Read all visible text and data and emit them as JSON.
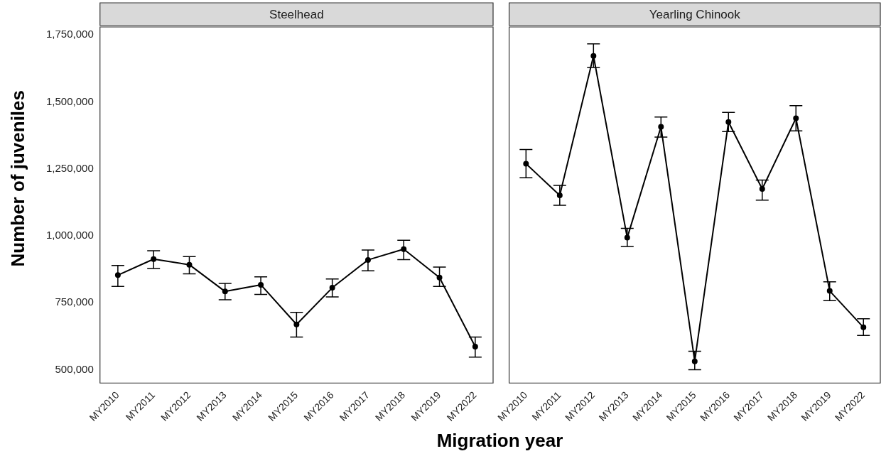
{
  "chart_data": [
    {
      "type": "line",
      "title": "Steelhead",
      "xlabel": "Migration year",
      "ylabel": "Number of juveniles",
      "categories": [
        "MY2010",
        "MY2011",
        "MY2012",
        "MY2013",
        "MY2014",
        "MY2015",
        "MY2016",
        "MY2017",
        "MY2018",
        "MY2019",
        "MY2022"
      ],
      "series": [
        {
          "color": "#000000",
          "values": [
            853000,
            913000,
            892000,
            792000,
            817000,
            669000,
            806000,
            910000,
            950000,
            844000,
            586000
          ],
          "errors": [
            [
              811000,
              889000
            ],
            [
              878000,
              944000
            ],
            [
              858000,
              922000
            ],
            [
              761000,
              822000
            ],
            [
              781000,
              847000
            ],
            [
              622000,
              714000
            ],
            [
              772000,
              839000
            ],
            [
              869000,
              947000
            ],
            [
              911000,
              983000
            ],
            [
              811000,
              883000
            ],
            [
              547000,
              622000
            ]
          ]
        }
      ],
      "ylim": [
        450000,
        1780000
      ],
      "yticks": [
        {
          "value": 500000,
          "label": "500,000"
        },
        {
          "value": 750000,
          "label": "750,000"
        },
        {
          "value": 1000000,
          "label": "1,000,000"
        },
        {
          "value": 1250000,
          "label": "1,250,000"
        },
        {
          "value": 1500000,
          "label": "1,500,000"
        },
        {
          "value": 1750000,
          "label": "1,750,000"
        }
      ],
      "grid": false,
      "legend": false,
      "marker": "circle",
      "line_style": "solid"
    },
    {
      "type": "line",
      "title": "Yearling Chinook",
      "categories": [
        "MY2010",
        "MY2011",
        "MY2012",
        "MY2013",
        "MY2014",
        "MY2015",
        "MY2016",
        "MY2017",
        "MY2018",
        "MY2019",
        "MY2022"
      ],
      "series": [
        {
          "color": "#000000",
          "values": [
            1269000,
            1151000,
            1672000,
            993000,
            1407000,
            531000,
            1425000,
            1175000,
            1439000,
            794000,
            658000
          ],
          "errors": [
            [
              1217000,
              1322000
            ],
            [
              1114000,
              1188000
            ],
            [
              1629000,
              1717000
            ],
            [
              960000,
              1028000
            ],
            [
              1369000,
              1444000
            ],
            [
              500000,
              569000
            ],
            [
              1389000,
              1461000
            ],
            [
              1133000,
              1208000
            ],
            [
              1392000,
              1486000
            ],
            [
              758000,
              828000
            ],
            [
              628000,
              690000
            ]
          ]
        }
      ],
      "ylim": [
        450000,
        1780000
      ],
      "tick_labels": "x",
      "grid": false,
      "legend": false,
      "marker": "circle",
      "line_style": "solid"
    }
  ]
}
